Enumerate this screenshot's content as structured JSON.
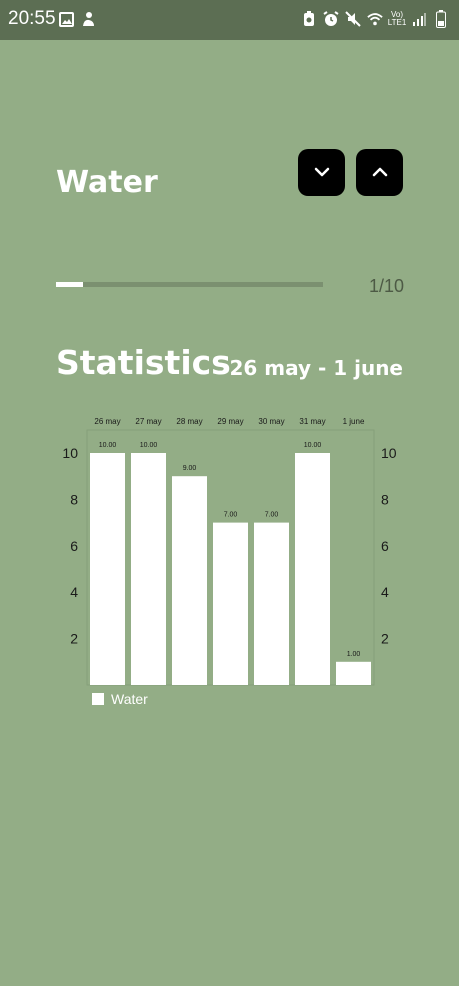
{
  "status_bar": {
    "time": "20:55",
    "left_icons": [
      "image-icon",
      "notification-icon"
    ],
    "right_icons": [
      "battery-saver-icon",
      "alarm-icon",
      "mute-icon",
      "wifi-icon",
      "lte-icon",
      "signal-icon",
      "battery-icon"
    ],
    "network_label_top": "Vo)",
    "network_label_bottom": "LTE1"
  },
  "header": {
    "title": "Water",
    "buttons": [
      {
        "name": "previous",
        "icon": "chevron-down-icon"
      },
      {
        "name": "next",
        "icon": "chevron-up-icon"
      }
    ]
  },
  "progress": {
    "current": 1,
    "total": 10,
    "text": "1/10"
  },
  "statistics": {
    "title": "Statistics",
    "date_range": "26 may - 1 june"
  },
  "chart_data": {
    "type": "bar",
    "categories": [
      "26 may",
      "27 may",
      "28 may",
      "29 may",
      "30 may",
      "31 may",
      "1 june"
    ],
    "series": [
      {
        "name": "Water",
        "values": [
          10,
          10,
          9,
          7,
          7,
          10,
          1
        ]
      }
    ],
    "value_labels": [
      "10.00",
      "10.00",
      "9.00",
      "7.00",
      "7.00",
      "10.00",
      "1.00"
    ],
    "y_ticks": [
      "2",
      "4",
      "6",
      "8",
      "10"
    ],
    "ylim": [
      0,
      10
    ],
    "legend_position": "bottom-left",
    "bar_color": "#ffffff",
    "grid": false
  }
}
